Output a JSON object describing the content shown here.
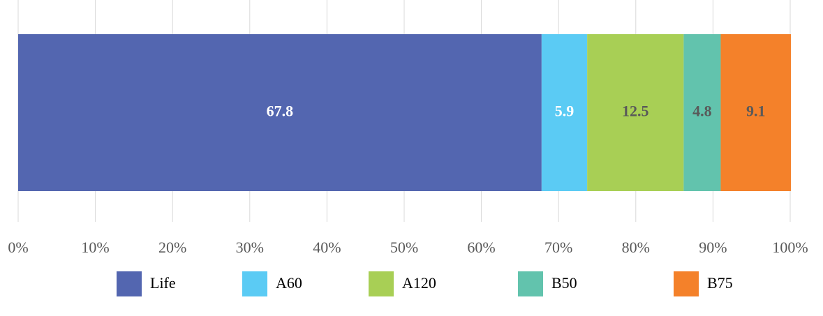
{
  "chart_data": {
    "type": "stacked_bar_horizontal",
    "categories": [
      null
    ],
    "series": [
      {
        "name": "Life",
        "color": "#5366b0",
        "label_color": "#ffffff",
        "values": [
          67.8
        ]
      },
      {
        "name": "A60",
        "color": "#5bcbf4",
        "label_color": "#ffffff",
        "values": [
          5.9
        ]
      },
      {
        "name": "A120",
        "color": "#a8cf55",
        "label_color": "#595959",
        "values": [
          12.5
        ]
      },
      {
        "name": "B50",
        "color": "#62c3ad",
        "label_color": "#595959",
        "values": [
          4.8
        ]
      },
      {
        "name": "B75",
        "color": "#f4812a",
        "label_color": "#595959",
        "values": [
          9.1
        ]
      }
    ],
    "xlim": [
      0,
      100
    ],
    "xticks": [
      {
        "value": 0,
        "label": "0%"
      },
      {
        "value": 10,
        "label": "10%"
      },
      {
        "value": 20,
        "label": "20%"
      },
      {
        "value": 30,
        "label": "30%"
      },
      {
        "value": 40,
        "label": "40%"
      },
      {
        "value": 50,
        "label": "50%"
      },
      {
        "value": 60,
        "label": "60%"
      },
      {
        "value": 70,
        "label": "70%"
      },
      {
        "value": 80,
        "label": "80%"
      },
      {
        "value": 90,
        "label": "90%"
      },
      {
        "value": 100,
        "label": "100%"
      }
    ],
    "grid": true,
    "legend": "bottom"
  }
}
